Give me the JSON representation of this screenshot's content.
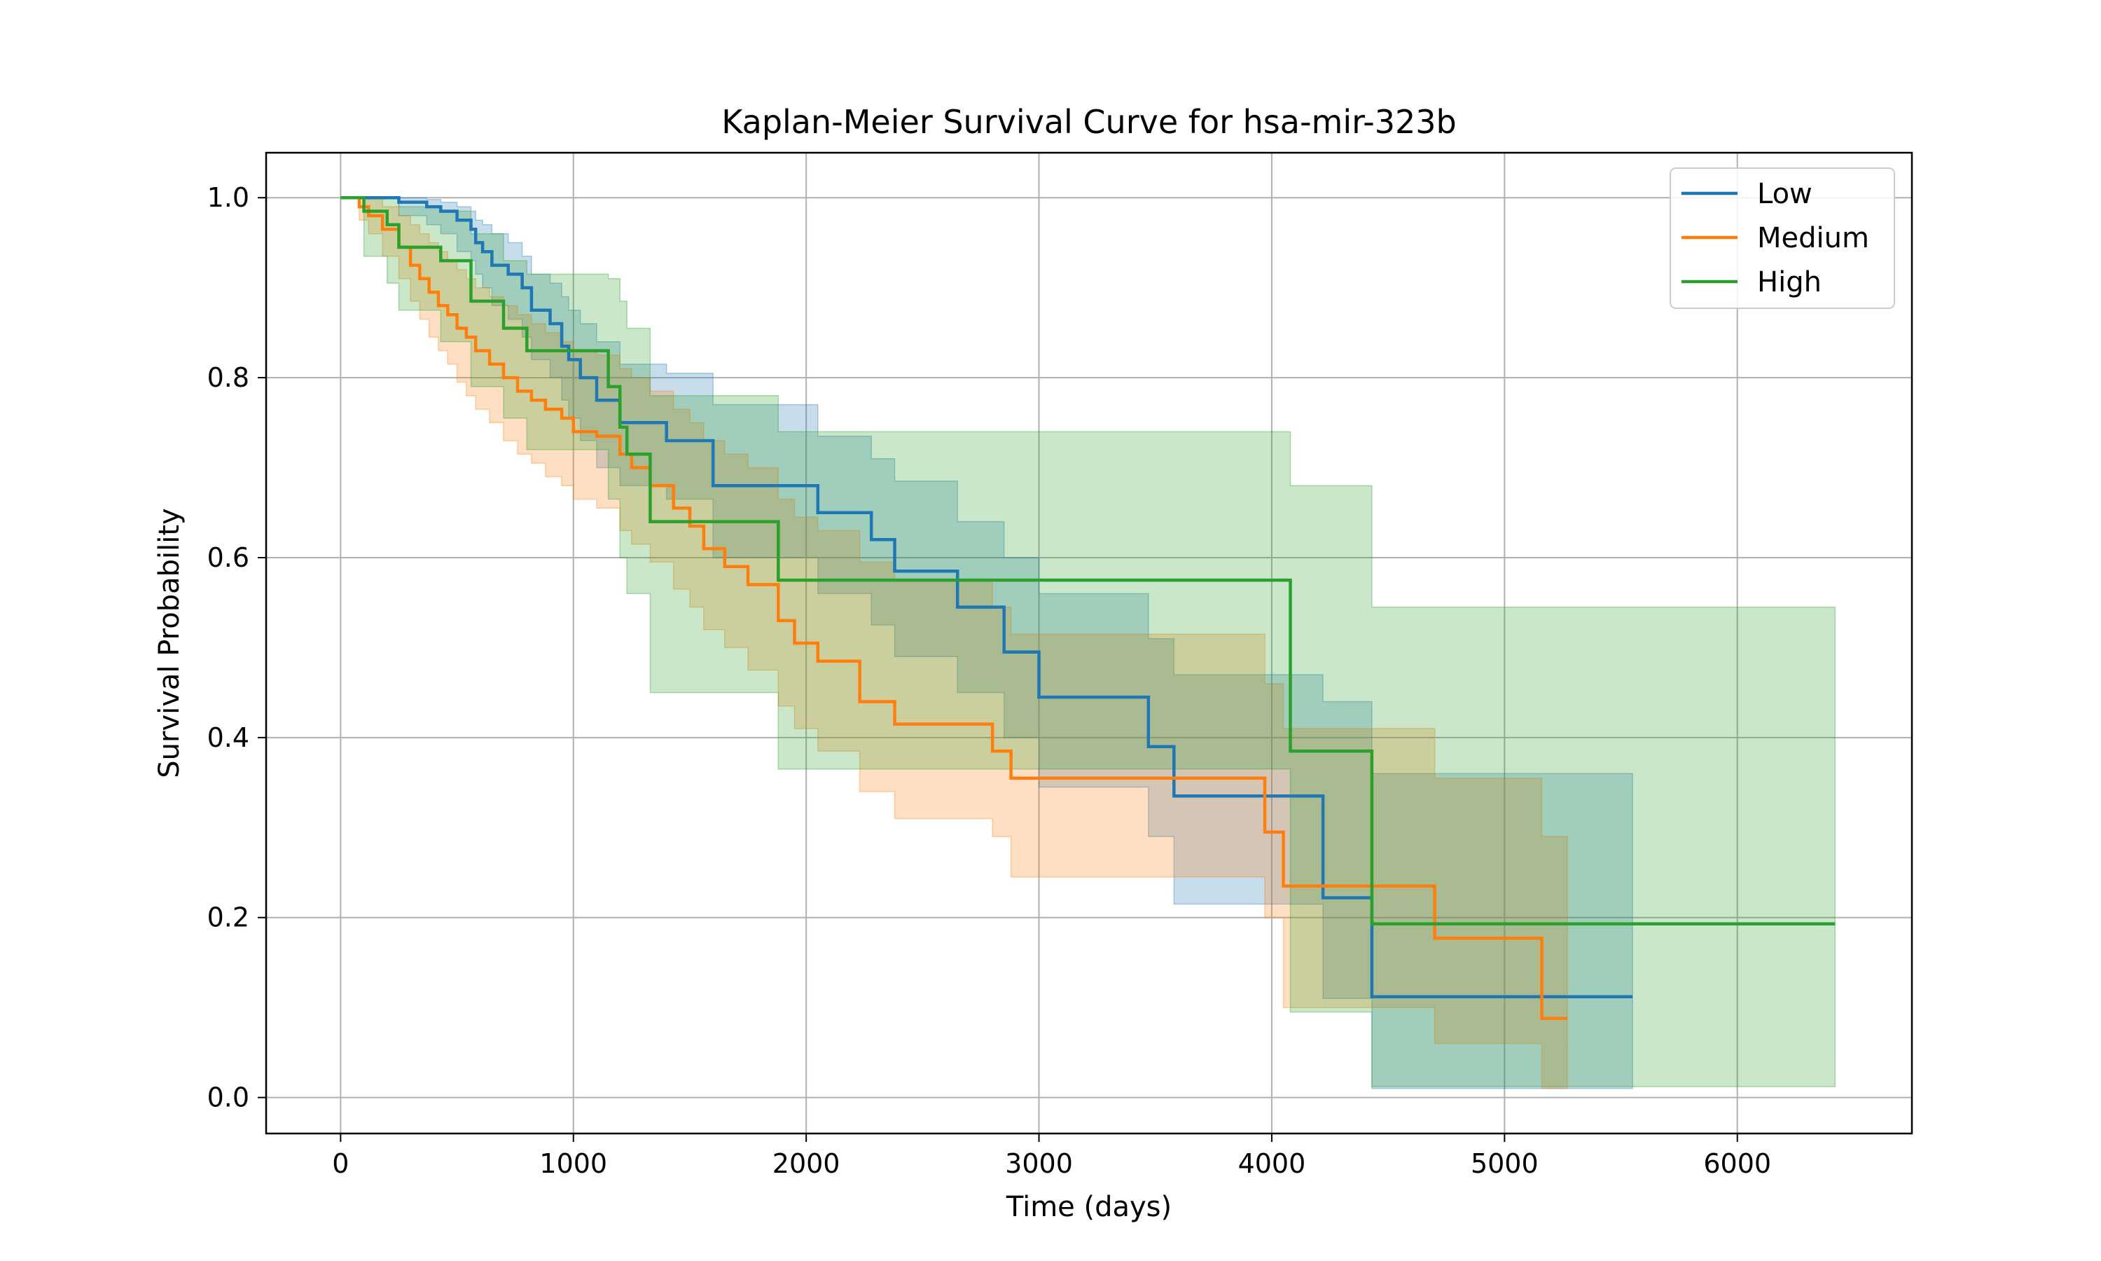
{
  "chart_data": {
    "type": "line",
    "title": "Kaplan-Meier Survival Curve for hsa-mir-323b",
    "xlabel": "Time (days)",
    "ylabel": "Survival Probability",
    "xlim": [
      -320,
      6750
    ],
    "ylim": [
      -0.04,
      1.05
    ],
    "x_ticks": [
      0,
      1000,
      2000,
      3000,
      4000,
      5000,
      6000
    ],
    "x_tick_labels": [
      "0",
      "1000",
      "2000",
      "3000",
      "4000",
      "5000",
      "6000"
    ],
    "y_ticks": [
      0.0,
      0.2,
      0.4,
      0.6,
      0.8,
      1.0
    ],
    "y_tick_labels": [
      "0.0",
      "0.2",
      "0.4",
      "0.6",
      "0.8",
      "1.0"
    ],
    "grid": true,
    "legend_position": "top-right",
    "series": [
      {
        "name": "Low",
        "color": "#1f77b4",
        "x": [
          0,
          250,
          370,
          430,
          500,
          560,
          580,
          610,
          650,
          720,
          780,
          820,
          900,
          950,
          980,
          1030,
          1100,
          1200,
          1400,
          1600,
          2050,
          2280,
          2380,
          2650,
          2850,
          3000,
          3470,
          3580,
          4220,
          4430,
          5550
        ],
        "y": [
          1.0,
          0.995,
          0.99,
          0.985,
          0.975,
          0.965,
          0.95,
          0.94,
          0.925,
          0.915,
          0.9,
          0.875,
          0.86,
          0.835,
          0.82,
          0.8,
          0.775,
          0.75,
          0.73,
          0.68,
          0.65,
          0.62,
          0.585,
          0.545,
          0.495,
          0.445,
          0.39,
          0.335,
          0.222,
          0.112,
          0.112
        ],
        "ci_upper": [
          1.0,
          1.0,
          0.998,
          0.995,
          0.99,
          0.985,
          0.975,
          0.97,
          0.96,
          0.95,
          0.935,
          0.915,
          0.905,
          0.89,
          0.875,
          0.86,
          0.84,
          0.815,
          0.805,
          0.77,
          0.735,
          0.71,
          0.685,
          0.64,
          0.6,
          0.56,
          0.51,
          0.47,
          0.44,
          0.36,
          0.36
        ],
        "ci_lower": [
          1.0,
          0.98,
          0.97,
          0.96,
          0.94,
          0.93,
          0.915,
          0.9,
          0.88,
          0.865,
          0.845,
          0.82,
          0.8,
          0.775,
          0.755,
          0.73,
          0.7,
          0.68,
          0.665,
          0.6,
          0.56,
          0.525,
          0.49,
          0.45,
          0.4,
          0.345,
          0.29,
          0.215,
          0.11,
          0.01,
          0.01
        ]
      },
      {
        "name": "Medium",
        "color": "#ff7f0e",
        "x": [
          0,
          80,
          120,
          180,
          250,
          300,
          340,
          380,
          420,
          460,
          500,
          540,
          580,
          640,
          700,
          760,
          820,
          880,
          950,
          1000,
          1100,
          1200,
          1250,
          1330,
          1430,
          1500,
          1560,
          1650,
          1750,
          1880,
          1950,
          2050,
          2230,
          2380,
          2800,
          2880,
          3970,
          4050,
          4700,
          5160,
          5270
        ],
        "y": [
          1.0,
          0.99,
          0.98,
          0.965,
          0.945,
          0.925,
          0.91,
          0.895,
          0.88,
          0.87,
          0.855,
          0.845,
          0.83,
          0.815,
          0.8,
          0.785,
          0.775,
          0.765,
          0.755,
          0.74,
          0.735,
          0.715,
          0.7,
          0.68,
          0.655,
          0.635,
          0.61,
          0.59,
          0.57,
          0.53,
          0.505,
          0.485,
          0.44,
          0.415,
          0.385,
          0.355,
          0.295,
          0.235,
          0.177,
          0.088,
          0.088
        ],
        "ci_upper": [
          1.0,
          1.0,
          1.0,
          0.99,
          0.98,
          0.97,
          0.96,
          0.95,
          0.94,
          0.93,
          0.92,
          0.91,
          0.9,
          0.89,
          0.88,
          0.87,
          0.86,
          0.85,
          0.84,
          0.83,
          0.825,
          0.81,
          0.8,
          0.785,
          0.765,
          0.75,
          0.73,
          0.715,
          0.7,
          0.665,
          0.645,
          0.63,
          0.595,
          0.575,
          0.545,
          0.515,
          0.46,
          0.41,
          0.355,
          0.29,
          0.29
        ],
        "ci_lower": [
          1.0,
          0.975,
          0.96,
          0.935,
          0.91,
          0.885,
          0.865,
          0.845,
          0.83,
          0.815,
          0.795,
          0.78,
          0.765,
          0.75,
          0.73,
          0.715,
          0.705,
          0.69,
          0.68,
          0.665,
          0.655,
          0.63,
          0.615,
          0.595,
          0.565,
          0.545,
          0.52,
          0.5,
          0.475,
          0.435,
          0.41,
          0.385,
          0.34,
          0.31,
          0.29,
          0.245,
          0.2,
          0.1,
          0.06,
          0.01,
          0.01
        ]
      },
      {
        "name": "High",
        "color": "#2ca02c",
        "x": [
          0,
          100,
          200,
          250,
          430,
          560,
          700,
          800,
          1150,
          1200,
          1230,
          1330,
          1880,
          4080,
          4430,
          6420
        ],
        "y": [
          1.0,
          0.985,
          0.97,
          0.945,
          0.93,
          0.885,
          0.855,
          0.83,
          0.79,
          0.745,
          0.715,
          0.64,
          0.575,
          0.385,
          0.193,
          0.193
        ],
        "ci_upper": [
          1.0,
          1.0,
          1.0,
          0.99,
          0.985,
          0.96,
          0.93,
          0.915,
          0.91,
          0.885,
          0.855,
          0.78,
          0.74,
          0.68,
          0.545,
          0.545
        ],
        "ci_lower": [
          1.0,
          0.935,
          0.905,
          0.875,
          0.84,
          0.79,
          0.755,
          0.72,
          0.665,
          0.6,
          0.56,
          0.45,
          0.365,
          0.095,
          0.012,
          0.012
        ]
      }
    ]
  }
}
